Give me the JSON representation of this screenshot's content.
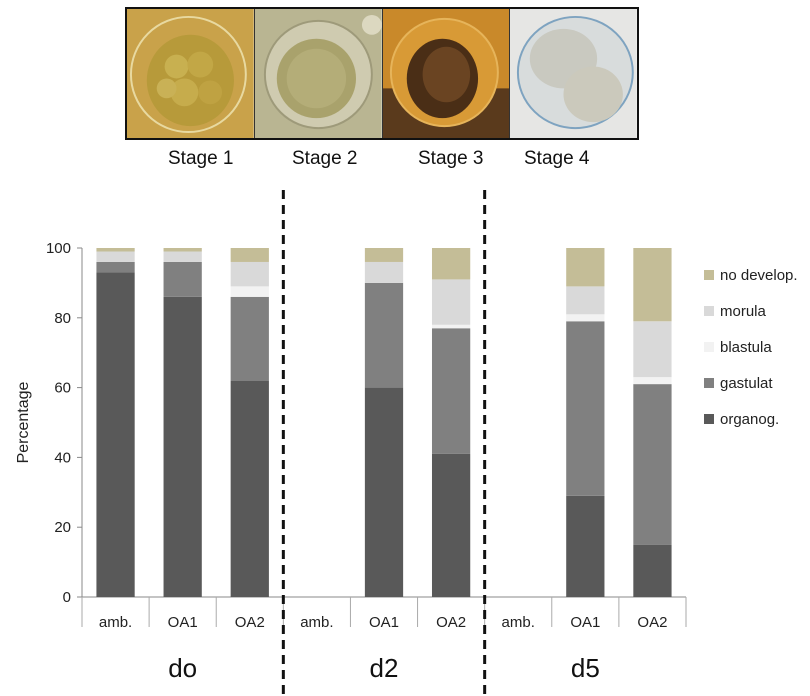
{
  "stages": {
    "labels": [
      "Stage 1",
      "Stage 2",
      "Stage 3",
      "Stage 4"
    ]
  },
  "chart_data": {
    "type": "bar",
    "stacked": true,
    "ylabel": "Percentage",
    "ylim": [
      0,
      100
    ],
    "yticks": [
      0,
      20,
      40,
      60,
      80,
      100
    ],
    "groups": [
      "do",
      "d2",
      "d5"
    ],
    "categories": [
      "amb.",
      "OA1",
      "OA2"
    ],
    "legend_position": "right",
    "series": [
      {
        "name": "organog.",
        "color": "#595959",
        "values": [
          [
            93,
            86,
            62
          ],
          [
            null,
            60,
            41
          ],
          [
            null,
            29,
            15
          ]
        ]
      },
      {
        "name": "gastulat",
        "color": "#808080",
        "values": [
          [
            3,
            10,
            24
          ],
          [
            null,
            30,
            36
          ],
          [
            null,
            50,
            46
          ]
        ]
      },
      {
        "name": "blastula",
        "color": "#f2f2f2",
        "values": [
          [
            0,
            0,
            3
          ],
          [
            null,
            0,
            1
          ],
          [
            null,
            2,
            2
          ]
        ]
      },
      {
        "name": "morula",
        "color": "#d9d9d9",
        "values": [
          [
            3,
            3,
            7
          ],
          [
            null,
            6,
            13
          ],
          [
            null,
            8,
            16
          ]
        ]
      },
      {
        "name": "no develop.",
        "color": "#c4bd97",
        "values": [
          [
            1,
            1,
            4
          ],
          [
            null,
            4,
            9
          ],
          [
            null,
            11,
            21
          ]
        ]
      }
    ]
  }
}
